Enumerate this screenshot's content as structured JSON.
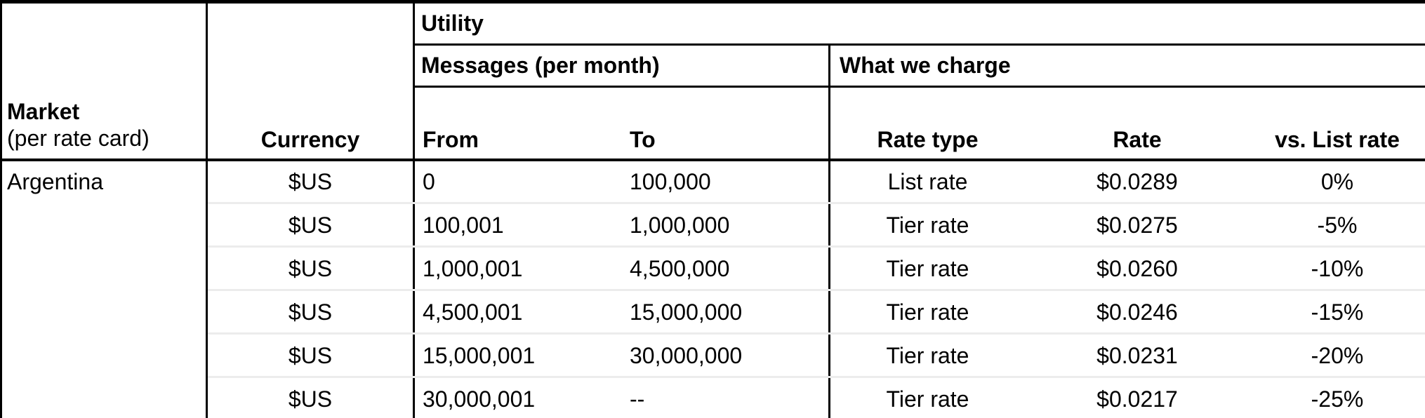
{
  "table": {
    "group_header": "Utility",
    "subgroup_left": "Messages (per month)",
    "subgroup_right": "What we charge",
    "columns": {
      "market_line1": "Market",
      "market_line2": "(per rate card)",
      "currency": "Currency",
      "from": "From",
      "to": "To",
      "rate_type": "Rate type",
      "rate": "Rate",
      "vs_list_rate": "vs. List rate"
    },
    "market_value": "Argentina",
    "rows": [
      {
        "currency": "$US",
        "from": "0",
        "to": "100,000",
        "rate_type": "List rate",
        "rate": "$0.0289",
        "vs_list": "0%"
      },
      {
        "currency": "$US",
        "from": "100,001",
        "to": "1,000,000",
        "rate_type": "Tier rate",
        "rate": "$0.0275",
        "vs_list": "-5%"
      },
      {
        "currency": "$US",
        "from": "1,000,001",
        "to": "4,500,000",
        "rate_type": "Tier rate",
        "rate": "$0.0260",
        "vs_list": "-10%"
      },
      {
        "currency": "$US",
        "from": "4,500,001",
        "to": "15,000,000",
        "rate_type": "Tier rate",
        "rate": "$0.0246",
        "vs_list": "-15%"
      },
      {
        "currency": "$US",
        "from": "15,000,001",
        "to": "30,000,000",
        "rate_type": "Tier rate",
        "rate": "$0.0231",
        "vs_list": "-20%"
      },
      {
        "currency": "$US",
        "from": "30,000,001",
        "to": "--",
        "rate_type": "Tier rate",
        "rate": "$0.0217",
        "vs_list": "-25%"
      }
    ],
    "colors": {
      "grid_line": "#000000",
      "row_divider": "#ececec",
      "background": "#ffffff",
      "text": "#000000"
    }
  }
}
